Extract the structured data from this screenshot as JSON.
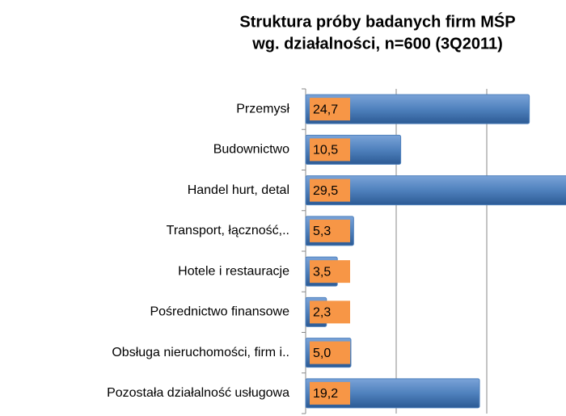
{
  "chart_data": {
    "type": "barh",
    "title": [
      "Struktura próby badanych firm MŚP",
      "wg. działalności, n=600 (3Q2011)"
    ],
    "categories": [
      "Przemysł",
      "Budownictwo",
      "Handel hurt, detal",
      "Transport, łączność,..",
      "Hotele i restauracje",
      "Pośrednictwo finansowe",
      "Obsługa nieruchomości, firm i..",
      "Pozostała działalność usługowa"
    ],
    "values": [
      24.7,
      10.5,
      29.5,
      5.3,
      3.5,
      2.3,
      5.0,
      19.2
    ],
    "value_labels": [
      "24,7",
      "10,5",
      "29,5",
      "5,3",
      "3,5",
      "2,3",
      "5,0",
      "19,2"
    ],
    "color": "#4f81bd",
    "label_color": "#f79646",
    "xlim": [
      0,
      30
    ],
    "xticks": [
      0,
      10,
      20,
      30
    ],
    "grid": true
  }
}
